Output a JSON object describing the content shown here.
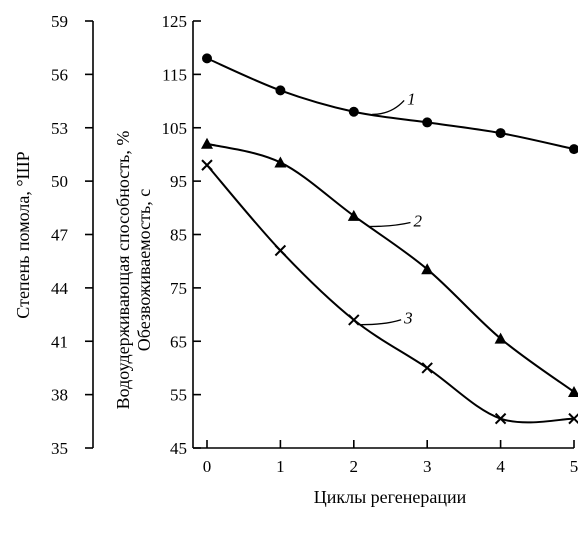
{
  "chart_data": {
    "type": "line",
    "xlabel": "Циклы регенерации",
    "x": [
      0,
      1,
      2,
      3,
      4,
      5
    ],
    "xlim": [
      0,
      5
    ],
    "x_ticks": [
      "0",
      "1",
      "2",
      "3",
      "4",
      "5"
    ],
    "axes": [
      {
        "id": "outer",
        "label": "Степень помола, °ШР",
        "ylim": [
          35,
          59
        ],
        "ticks": [
          "35",
          "38",
          "41",
          "44",
          "47",
          "50",
          "53",
          "56",
          "59"
        ]
      },
      {
        "id": "main",
        "label": "Водоудерживающая способность, %\nОбезвоживаемость, с",
        "ylim": [
          45,
          125
        ],
        "ticks": [
          "45",
          "55",
          "65",
          "75",
          "85",
          "95",
          "105",
          "115",
          "125"
        ]
      }
    ],
    "series": [
      {
        "label": "1",
        "marker": "circle",
        "values": [
          118,
          112,
          108,
          106,
          104,
          101
        ]
      },
      {
        "label": "2",
        "marker": "triangle",
        "values": [
          102,
          98.5,
          88.5,
          78.5,
          65.5,
          55.5
        ]
      },
      {
        "label": "3",
        "marker": "cross",
        "values": [
          98,
          82,
          69,
          60,
          50.5,
          50.5
        ]
      }
    ],
    "grid": false
  }
}
